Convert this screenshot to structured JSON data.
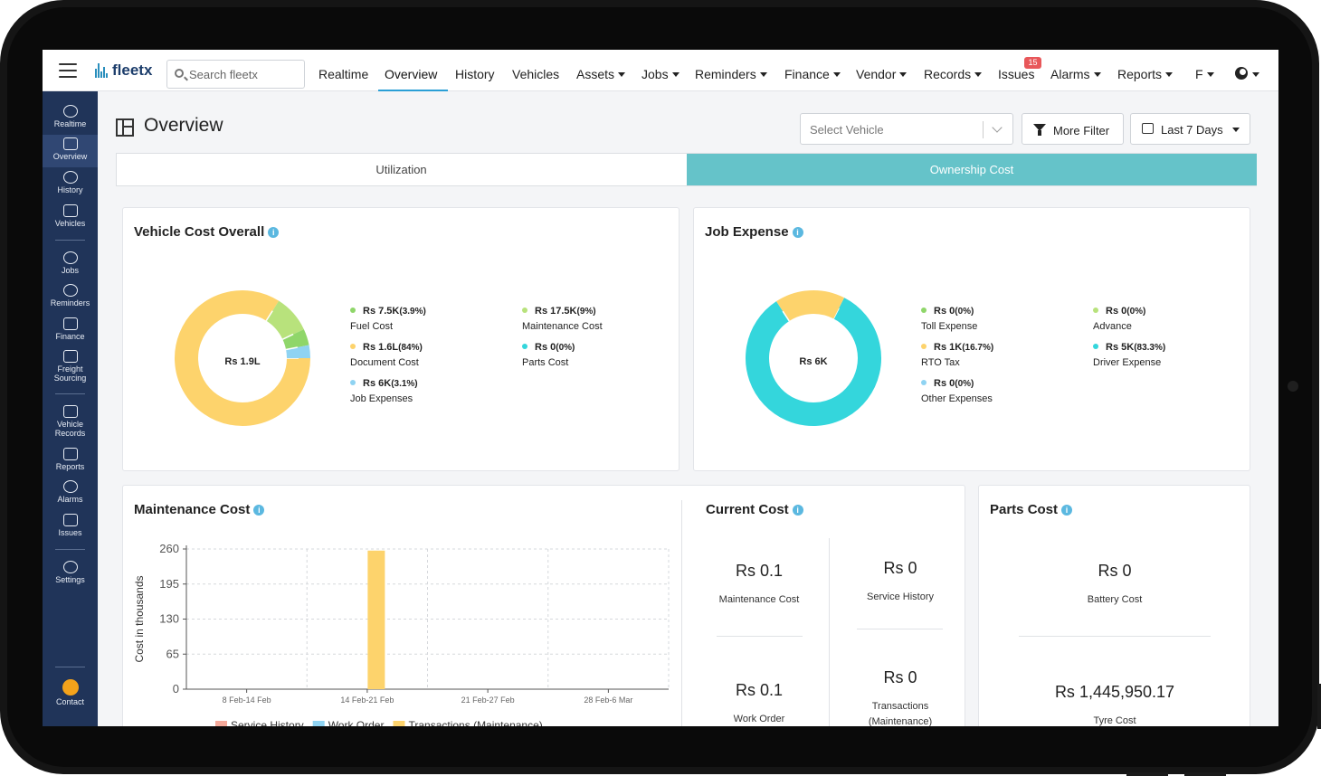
{
  "nav": {
    "logo": "fleetx",
    "search_placeholder": "Search fleetx",
    "items": [
      {
        "label": "Realtime",
        "dropdown": false
      },
      {
        "label": "Overview",
        "dropdown": false,
        "active": true
      },
      {
        "label": "History",
        "dropdown": false
      },
      {
        "label": "Vehicles",
        "dropdown": false
      },
      {
        "label": "Assets",
        "dropdown": true
      },
      {
        "label": "Jobs",
        "dropdown": true
      },
      {
        "label": "Reminders",
        "dropdown": true
      },
      {
        "label": "Finance",
        "dropdown": true
      },
      {
        "label": "Vendor",
        "dropdown": true
      },
      {
        "label": "Records",
        "dropdown": true
      },
      {
        "label": "Issues",
        "dropdown": false
      },
      {
        "label": "Alarms",
        "dropdown": true
      },
      {
        "label": "Reports",
        "dropdown": true
      },
      {
        "label": "F",
        "dropdown": true
      }
    ],
    "issues_badge": "15"
  },
  "sidebar": {
    "items": [
      {
        "label": "Realtime",
        "icon": "map-pin-icon"
      },
      {
        "label": "Overview",
        "icon": "dashboard-icon",
        "active": true
      },
      {
        "label": "History",
        "icon": "history-icon"
      },
      {
        "label": "Vehicles",
        "icon": "truck-icon"
      },
      {
        "label": "Jobs",
        "icon": "jobs-icon"
      },
      {
        "label": "Reminders",
        "icon": "bell-icon"
      },
      {
        "label": "Finance",
        "icon": "finance-icon"
      },
      {
        "label": "Freight Sourcing",
        "icon": "freight-icon"
      },
      {
        "label": "Vehicle Records",
        "icon": "records-icon"
      },
      {
        "label": "Reports",
        "icon": "report-icon"
      },
      {
        "label": "Alarms",
        "icon": "alarm-icon"
      },
      {
        "label": "Issues",
        "icon": "flag-icon"
      },
      {
        "label": "Settings",
        "icon": "gear-icon"
      }
    ],
    "contact": "Contact"
  },
  "page": {
    "title": "Overview",
    "select_vehicle_placeholder": "Select Vehicle",
    "more_filter": "More Filter",
    "date_range": "Last 7 Days",
    "tabs": [
      "Utilization",
      "Ownership Cost"
    ],
    "active_tab": "Ownership Cost"
  },
  "vehicle_cost": {
    "title": "Vehicle Cost Overall",
    "center": "Rs 1.9L",
    "legend": [
      {
        "value": "Rs 7.5K",
        "pct": "(3.9%)",
        "name": "Fuel Cost",
        "color": "#8fd66a"
      },
      {
        "value": "Rs 17.5K",
        "pct": "(9%)",
        "name": "Maintenance Cost",
        "color": "#b8e27c"
      },
      {
        "value": "Rs 1.6L",
        "pct": "(84%)",
        "name": "Document Cost",
        "color": "#fdd36c"
      },
      {
        "value": "Rs 0",
        "pct": "(0%)",
        "name": "Parts Cost",
        "color": "#34d6dc"
      },
      {
        "value": "Rs 6K",
        "pct": "(3.1%)",
        "name": "Job Expenses",
        "color": "#8fd3f2"
      }
    ]
  },
  "job_expense": {
    "title": "Job Expense",
    "center": "Rs 6K",
    "legend": [
      {
        "value": "Rs 0",
        "pct": "(0%)",
        "name": "Toll Expense",
        "color": "#8fd66a"
      },
      {
        "value": "Rs 0",
        "pct": "(0%)",
        "name": "Advance",
        "color": "#b8e27c"
      },
      {
        "value": "Rs 1K",
        "pct": "(16.7%)",
        "name": "RTO Tax",
        "color": "#fdd36c"
      },
      {
        "value": "Rs 5K",
        "pct": "(83.3%)",
        "name": "Driver Expense",
        "color": "#34d6dc"
      },
      {
        "value": "Rs 0",
        "pct": "(0%)",
        "name": "Other Expenses",
        "color": "#8fd3f2"
      }
    ]
  },
  "chart_data": {
    "type": "bar",
    "title": "Maintenance Cost",
    "ylabel": "Cost in thousands",
    "xlabel": "",
    "categories": [
      "8 Feb-14 Feb",
      "14 Feb-21 Feb",
      "21 Feb-27 Feb",
      "28 Feb-6 Mar"
    ],
    "yticks": [
      0,
      65,
      130,
      195,
      260
    ],
    "ylim": [
      0,
      260
    ],
    "series": [
      {
        "name": "Service History",
        "color": "#f5a99a",
        "values": [
          0,
          0,
          0,
          0
        ]
      },
      {
        "name": "Work Order",
        "color": "#8fd3f2",
        "values": [
          0,
          0,
          0,
          0
        ]
      },
      {
        "name": "Transactions (Maintenance)",
        "color": "#fdd36c",
        "values": [
          0,
          257,
          0,
          0
        ]
      }
    ],
    "grid": true,
    "legend": "bottom"
  },
  "current_cost": {
    "title": "Current Cost",
    "stats": [
      {
        "value": "Rs 0.1",
        "label": "Maintenance Cost"
      },
      {
        "value": "Rs 0",
        "label": "Service History"
      },
      {
        "value": "Rs 0.1",
        "label": "Work Order"
      },
      {
        "value": "Rs 0",
        "label": "Transactions (Maintenance)"
      }
    ]
  },
  "parts_cost": {
    "title": "Parts Cost",
    "stats": [
      {
        "value": "Rs 0",
        "label": "Battery Cost"
      },
      {
        "value": "Rs 1,445,950.17",
        "label": "Tyre Cost"
      }
    ]
  }
}
